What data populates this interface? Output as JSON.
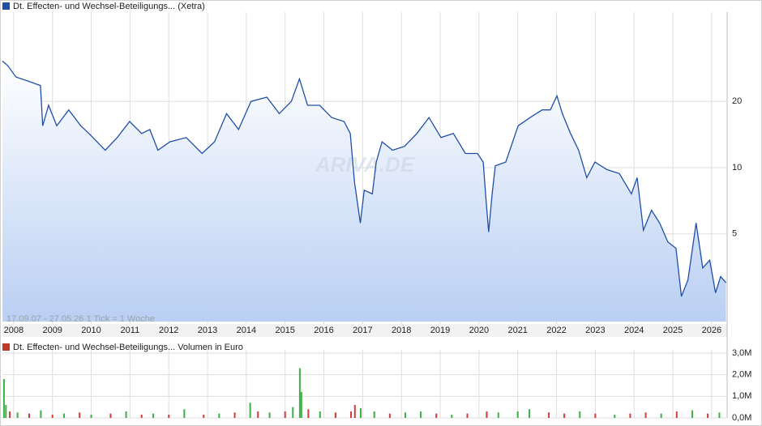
{
  "chart_data": [
    {
      "type": "line",
      "title": "Dt. Effecten- und Wechsel-Beteiligungs... (Xetra)",
      "subtitle": "17.09.07 - 27.05.26   1 Tick = 1 Woche",
      "watermark": "ARIVA.DE",
      "color": "#1f4fa8",
      "log_scale": true,
      "grid": true,
      "x": [
        2007.71,
        2007.85,
        2008.06,
        2008.38,
        2008.69,
        2008.75,
        2008.9,
        2009.11,
        2009.42,
        2009.73,
        2009.94,
        2010.15,
        2010.36,
        2010.67,
        2010.99,
        2011.3,
        2011.51,
        2011.72,
        2012.03,
        2012.45,
        2012.86,
        2013.18,
        2013.49,
        2013.8,
        2014.12,
        2014.53,
        2014.85,
        2015.16,
        2015.37,
        2015.58,
        2015.89,
        2016.2,
        2016.52,
        2016.68,
        2016.79,
        2016.94,
        2017.04,
        2017.25,
        2017.35,
        2017.5,
        2017.77,
        2018.08,
        2018.4,
        2018.71,
        2019.02,
        2019.34,
        2019.65,
        2019.96,
        2020.11,
        2020.17,
        2020.25,
        2020.34,
        2020.42,
        2020.69,
        2021.01,
        2021.32,
        2021.63,
        2021.84,
        2022.01,
        2022.15,
        2022.36,
        2022.57,
        2022.78,
        2022.99,
        2023.3,
        2023.62,
        2023.93,
        2024.08,
        2024.24,
        2024.45,
        2024.66,
        2024.87,
        2025.08,
        2025.22,
        2025.39,
        2025.6,
        2025.77,
        2025.95,
        2026.1,
        2026.23,
        2026.37
      ],
      "values": [
        30.5,
        29,
        25.8,
        24.7,
        23.6,
        15.5,
        19.2,
        15.5,
        18.3,
        15.5,
        14.3,
        13.1,
        12.0,
        13.7,
        16.2,
        14.3,
        14.9,
        12.0,
        13.1,
        13.7,
        11.6,
        13.1,
        17.6,
        14.9,
        20,
        20.9,
        17.6,
        20,
        25.3,
        19.2,
        19.2,
        16.9,
        16.2,
        14.3,
        8.6,
        5.6,
        7.9,
        7.6,
        10.6,
        13.1,
        12.0,
        12.5,
        14.3,
        16.9,
        13.7,
        14.3,
        11.6,
        11.6,
        10.6,
        7.6,
        5.1,
        7.6,
        10.2,
        10.6,
        15.5,
        16.9,
        18.3,
        18.3,
        21.2,
        17.6,
        14.3,
        12.0,
        9.0,
        10.6,
        9.8,
        9.4,
        7.6,
        9.0,
        5.2,
        6.4,
        5.6,
        4.6,
        4.3,
        2.6,
        3.1,
        5.6,
        3.5,
        3.8,
        2.7,
        3.2,
        3.0
      ],
      "xlim": [
        2007.71,
        2026.4
      ],
      "xticks": [
        2008,
        2009,
        2010,
        2011,
        2012,
        2013,
        2014,
        2015,
        2016,
        2017,
        2018,
        2019,
        2020,
        2021,
        2022,
        2023,
        2024,
        2025,
        2026
      ],
      "ylim": [
        2,
        50
      ],
      "yticks": [
        5,
        10,
        20
      ]
    },
    {
      "type": "bar",
      "title": "Dt. Effecten- und Wechsel-Beteiligungs... Volumen in Euro",
      "legend_color": "#c0392b",
      "grid": true,
      "x": [
        2007.75,
        2007.8,
        2007.9,
        2008.1,
        2008.4,
        2008.7,
        2009.0,
        2009.3,
        2009.7,
        2010.0,
        2010.5,
        2010.9,
        2011.3,
        2011.6,
        2012.0,
        2012.4,
        2012.9,
        2013.3,
        2013.7,
        2014.1,
        2014.3,
        2014.6,
        2015.0,
        2015.2,
        2015.38,
        2015.42,
        2015.6,
        2015.9,
        2016.3,
        2016.7,
        2016.8,
        2016.95,
        2017.3,
        2017.7,
        2018.1,
        2018.5,
        2018.9,
        2019.3,
        2019.7,
        2020.2,
        2020.5,
        2021.0,
        2021.3,
        2021.8,
        2022.2,
        2022.6,
        2023.0,
        2023.5,
        2023.9,
        2024.3,
        2024.7,
        2025.1,
        2025.5,
        2025.9,
        2026.2
      ],
      "values": [
        1800000,
        600000,
        300000,
        250000,
        200000,
        350000,
        150000,
        200000,
        250000,
        150000,
        200000,
        300000,
        150000,
        200000,
        150000,
        400000,
        150000,
        200000,
        250000,
        700000,
        300000,
        250000,
        300000,
        500000,
        2300000,
        1200000,
        400000,
        300000,
        250000,
        300000,
        600000,
        450000,
        300000,
        200000,
        250000,
        300000,
        200000,
        150000,
        200000,
        300000,
        250000,
        300000,
        400000,
        250000,
        200000,
        300000,
        200000,
        150000,
        200000,
        250000,
        200000,
        300000,
        350000,
        200000,
        250000
      ],
      "colors": [
        "#3cb043",
        "#3cb043",
        "#d23c3c",
        "#3cb043",
        "#d23c3c",
        "#3cb043",
        "#d23c3c",
        "#3cb043",
        "#d23c3c",
        "#3cb043",
        "#d23c3c",
        "#3cb043",
        "#d23c3c",
        "#3cb043",
        "#d23c3c",
        "#3cb043",
        "#d23c3c",
        "#3cb043",
        "#d23c3c",
        "#3cb043",
        "#d23c3c",
        "#3cb043",
        "#d23c3c",
        "#3cb043",
        "#3cb043",
        "#3cb043",
        "#d23c3c",
        "#3cb043",
        "#d23c3c",
        "#d23c3c",
        "#d23c3c",
        "#3cb043",
        "#3cb043",
        "#d23c3c",
        "#3cb043",
        "#3cb043",
        "#d23c3c",
        "#3cb043",
        "#d23c3c",
        "#d23c3c",
        "#3cb043",
        "#3cb043",
        "#3cb043",
        "#d23c3c",
        "#d23c3c",
        "#3cb043",
        "#d23c3c",
        "#3cb043",
        "#d23c3c",
        "#d23c3c",
        "#3cb043",
        "#d23c3c",
        "#3cb043",
        "#d23c3c",
        "#3cb043"
      ],
      "xlim": [
        2007.71,
        2026.4
      ],
      "ylim": [
        0,
        3000000
      ],
      "yticks": [
        {
          "value": 0,
          "label": "0,0M"
        },
        {
          "value": 1000000,
          "label": "1,0M"
        },
        {
          "value": 2000000,
          "label": "2,0M"
        },
        {
          "value": 3000000,
          "label": "3,0M"
        }
      ]
    }
  ]
}
